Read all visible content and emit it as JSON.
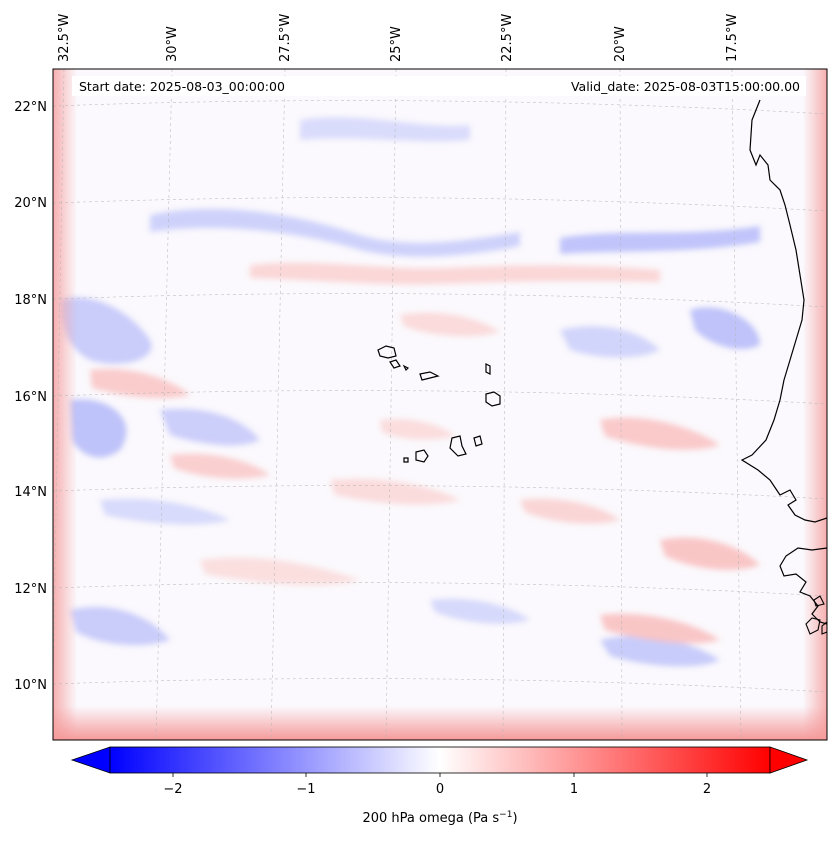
{
  "header": {
    "start_date": "Start date: 2025-08-03_00:00:00",
    "valid_date": "Valid_date: 2025-08-03T15:00:00.00"
  },
  "longitude_labels": [
    "32.5°W",
    "30°W",
    "27.5°W",
    "25°W",
    "22.5°W",
    "20°W",
    "17.5°W"
  ],
  "latitude_labels": [
    "22°N",
    "20°N",
    "18°N",
    "16°N",
    "14°N",
    "12°N",
    "10°N"
  ],
  "colorbar": {
    "ticks": [
      "−2",
      "−1",
      "0",
      "1",
      "2"
    ],
    "label": "200 hPa omega (Pa s",
    "label_exp": "−1",
    "label_close": ")",
    "range": [
      -2.6,
      2.6
    ],
    "colors": {
      "negative": "#0000ff",
      "zero": "#ffffff",
      "positive": "#ff0000"
    },
    "extend": "both"
  },
  "map": {
    "projection": "lambert-conformal",
    "gridlines": true,
    "coastlines": true,
    "field": "200 hPa omega",
    "islands": "Cabo Verde"
  }
}
